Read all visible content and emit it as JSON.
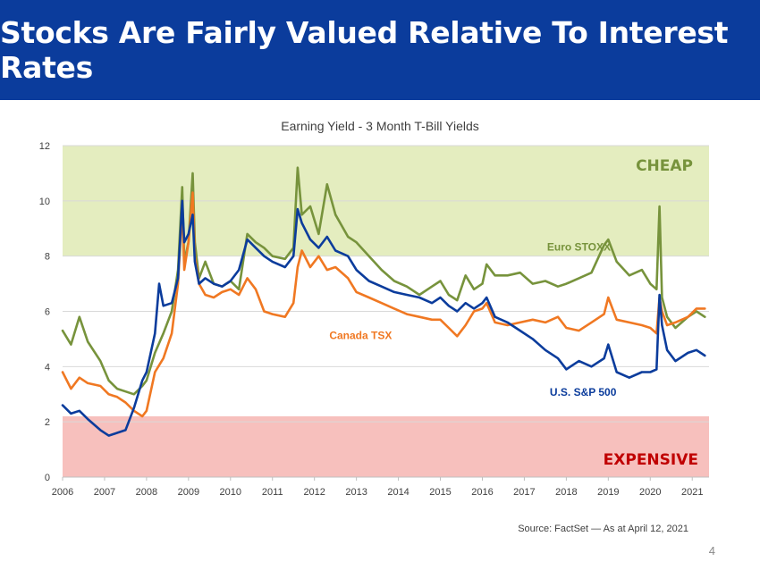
{
  "slide": {
    "title": "Stocks Are Fairly Valued Relative To Interest Rates",
    "source": "Source: FactSet — As at April 12, 2021",
    "page_number": "4"
  },
  "colors": {
    "banner": "#0b3c9c",
    "cheap_zone": "#e4edbf",
    "expensive_zone": "#f7c0bd",
    "euro": "#77933c",
    "canada": "#f07822",
    "us": "#0b3c9c"
  },
  "chart_data": {
    "type": "line",
    "title": "Earning Yield - 3 Month T-Bill Yields",
    "xlabel": "",
    "ylabel": "",
    "xlim": [
      2006,
      2021.4
    ],
    "ylim": [
      0,
      12
    ],
    "xticks": [
      "2006",
      "2007",
      "2008",
      "2009",
      "2010",
      "2011",
      "2012",
      "2013",
      "2014",
      "2015",
      "2016",
      "2017",
      "2018",
      "2019",
      "2020",
      "2021"
    ],
    "yticks": [
      "0",
      "2",
      "4",
      "6",
      "8",
      "10",
      "12"
    ],
    "grid": true,
    "zones": [
      {
        "label": "CHEAP",
        "from": 8,
        "to": 12
      },
      {
        "label": "EXPENSIVE",
        "from": 0,
        "to": 2.2
      }
    ],
    "series": [
      {
        "name": "Euro STOXX",
        "points": [
          [
            2006,
            5.3
          ],
          [
            2006.2,
            4.8
          ],
          [
            2006.4,
            5.8
          ],
          [
            2006.6,
            4.9
          ],
          [
            2006.9,
            4.2
          ],
          [
            2007.1,
            3.5
          ],
          [
            2007.3,
            3.2
          ],
          [
            2007.5,
            3.1
          ],
          [
            2007.7,
            3.0
          ],
          [
            2007.9,
            3.3
          ],
          [
            2008.0,
            3.5
          ],
          [
            2008.2,
            4.5
          ],
          [
            2008.4,
            5.2
          ],
          [
            2008.6,
            6.0
          ],
          [
            2008.75,
            7.5
          ],
          [
            2008.85,
            10.5
          ],
          [
            2008.9,
            7.8
          ],
          [
            2009.0,
            8.5
          ],
          [
            2009.1,
            11.0
          ],
          [
            2009.15,
            8.5
          ],
          [
            2009.25,
            7.2
          ],
          [
            2009.4,
            7.8
          ],
          [
            2009.6,
            7.0
          ],
          [
            2009.8,
            6.9
          ],
          [
            2010.0,
            7.1
          ],
          [
            2010.2,
            6.8
          ],
          [
            2010.4,
            8.8
          ],
          [
            2010.6,
            8.5
          ],
          [
            2010.8,
            8.3
          ],
          [
            2011.0,
            8.0
          ],
          [
            2011.3,
            7.9
          ],
          [
            2011.5,
            8.3
          ],
          [
            2011.6,
            11.2
          ],
          [
            2011.7,
            9.5
          ],
          [
            2011.9,
            9.8
          ],
          [
            2012.1,
            8.8
          ],
          [
            2012.3,
            10.6
          ],
          [
            2012.5,
            9.5
          ],
          [
            2012.8,
            8.7
          ],
          [
            2013.0,
            8.5
          ],
          [
            2013.3,
            8.0
          ],
          [
            2013.6,
            7.5
          ],
          [
            2013.9,
            7.1
          ],
          [
            2014.2,
            6.9
          ],
          [
            2014.5,
            6.6
          ],
          [
            2014.8,
            6.9
          ],
          [
            2015.0,
            7.1
          ],
          [
            2015.2,
            6.6
          ],
          [
            2015.4,
            6.4
          ],
          [
            2015.6,
            7.3
          ],
          [
            2015.8,
            6.8
          ],
          [
            2016.0,
            7.0
          ],
          [
            2016.1,
            7.7
          ],
          [
            2016.3,
            7.3
          ],
          [
            2016.6,
            7.3
          ],
          [
            2016.9,
            7.4
          ],
          [
            2017.2,
            7.0
          ],
          [
            2017.5,
            7.1
          ],
          [
            2017.8,
            6.9
          ],
          [
            2018.0,
            7.0
          ],
          [
            2018.3,
            7.2
          ],
          [
            2018.6,
            7.4
          ],
          [
            2018.9,
            8.4
          ],
          [
            2019.0,
            8.6
          ],
          [
            2019.2,
            7.8
          ],
          [
            2019.5,
            7.3
          ],
          [
            2019.8,
            7.5
          ],
          [
            2020.0,
            7.0
          ],
          [
            2020.15,
            6.8
          ],
          [
            2020.22,
            9.8
          ],
          [
            2020.28,
            6.5
          ],
          [
            2020.4,
            5.8
          ],
          [
            2020.6,
            5.4
          ],
          [
            2020.9,
            5.8
          ],
          [
            2021.1,
            6.0
          ],
          [
            2021.3,
            5.8
          ]
        ]
      },
      {
        "name": "Canada TSX",
        "points": [
          [
            2006,
            3.8
          ],
          [
            2006.2,
            3.2
          ],
          [
            2006.4,
            3.6
          ],
          [
            2006.6,
            3.4
          ],
          [
            2006.9,
            3.3
          ],
          [
            2007.1,
            3.0
          ],
          [
            2007.3,
            2.9
          ],
          [
            2007.5,
            2.7
          ],
          [
            2007.7,
            2.4
          ],
          [
            2007.9,
            2.2
          ],
          [
            2008.0,
            2.4
          ],
          [
            2008.2,
            3.8
          ],
          [
            2008.4,
            4.3
          ],
          [
            2008.6,
            5.2
          ],
          [
            2008.75,
            7.0
          ],
          [
            2008.85,
            9.8
          ],
          [
            2008.9,
            7.5
          ],
          [
            2009.0,
            8.5
          ],
          [
            2009.1,
            10.3
          ],
          [
            2009.15,
            8.0
          ],
          [
            2009.25,
            7.0
          ],
          [
            2009.4,
            6.6
          ],
          [
            2009.6,
            6.5
          ],
          [
            2009.8,
            6.7
          ],
          [
            2010.0,
            6.8
          ],
          [
            2010.2,
            6.6
          ],
          [
            2010.4,
            7.2
          ],
          [
            2010.6,
            6.8
          ],
          [
            2010.8,
            6.0
          ],
          [
            2011.0,
            5.9
          ],
          [
            2011.3,
            5.8
          ],
          [
            2011.5,
            6.3
          ],
          [
            2011.6,
            7.6
          ],
          [
            2011.7,
            8.2
          ],
          [
            2011.9,
            7.6
          ],
          [
            2012.1,
            8.0
          ],
          [
            2012.3,
            7.5
          ],
          [
            2012.5,
            7.6
          ],
          [
            2012.8,
            7.2
          ],
          [
            2013.0,
            6.7
          ],
          [
            2013.3,
            6.5
          ],
          [
            2013.6,
            6.3
          ],
          [
            2013.9,
            6.1
          ],
          [
            2014.2,
            5.9
          ],
          [
            2014.5,
            5.8
          ],
          [
            2014.8,
            5.7
          ],
          [
            2015.0,
            5.7
          ],
          [
            2015.2,
            5.4
          ],
          [
            2015.4,
            5.1
          ],
          [
            2015.6,
            5.5
          ],
          [
            2015.8,
            6.0
          ],
          [
            2016.0,
            6.1
          ],
          [
            2016.1,
            6.3
          ],
          [
            2016.3,
            5.6
          ],
          [
            2016.6,
            5.5
          ],
          [
            2016.9,
            5.6
          ],
          [
            2017.2,
            5.7
          ],
          [
            2017.5,
            5.6
          ],
          [
            2017.8,
            5.8
          ],
          [
            2018.0,
            5.4
          ],
          [
            2018.3,
            5.3
          ],
          [
            2018.6,
            5.6
          ],
          [
            2018.9,
            5.9
          ],
          [
            2019.0,
            6.5
          ],
          [
            2019.2,
            5.7
          ],
          [
            2019.5,
            5.6
          ],
          [
            2019.8,
            5.5
          ],
          [
            2020.0,
            5.4
          ],
          [
            2020.15,
            5.2
          ],
          [
            2020.22,
            6.5
          ],
          [
            2020.28,
            6.0
          ],
          [
            2020.4,
            5.5
          ],
          [
            2020.6,
            5.6
          ],
          [
            2020.9,
            5.8
          ],
          [
            2021.1,
            6.1
          ],
          [
            2021.3,
            6.1
          ]
        ]
      },
      {
        "name": "U.S. S&P 500",
        "points": [
          [
            2006,
            2.6
          ],
          [
            2006.2,
            2.3
          ],
          [
            2006.4,
            2.4
          ],
          [
            2006.6,
            2.1
          ],
          [
            2006.9,
            1.7
          ],
          [
            2007.1,
            1.5
          ],
          [
            2007.3,
            1.6
          ],
          [
            2007.5,
            1.7
          ],
          [
            2007.7,
            2.5
          ],
          [
            2007.9,
            3.5
          ],
          [
            2008.0,
            3.8
          ],
          [
            2008.2,
            5.2
          ],
          [
            2008.3,
            7.0
          ],
          [
            2008.4,
            6.2
          ],
          [
            2008.6,
            6.3
          ],
          [
            2008.75,
            7.2
          ],
          [
            2008.85,
            10.0
          ],
          [
            2008.9,
            8.5
          ],
          [
            2009.0,
            8.8
          ],
          [
            2009.1,
            9.5
          ],
          [
            2009.15,
            7.8
          ],
          [
            2009.25,
            7.0
          ],
          [
            2009.4,
            7.2
          ],
          [
            2009.6,
            7.0
          ],
          [
            2009.8,
            6.9
          ],
          [
            2010.0,
            7.1
          ],
          [
            2010.2,
            7.5
          ],
          [
            2010.4,
            8.6
          ],
          [
            2010.6,
            8.3
          ],
          [
            2010.8,
            8.0
          ],
          [
            2011.0,
            7.8
          ],
          [
            2011.3,
            7.6
          ],
          [
            2011.5,
            8.0
          ],
          [
            2011.6,
            9.7
          ],
          [
            2011.7,
            9.2
          ],
          [
            2011.9,
            8.6
          ],
          [
            2012.1,
            8.3
          ],
          [
            2012.3,
            8.7
          ],
          [
            2012.5,
            8.2
          ],
          [
            2012.8,
            8.0
          ],
          [
            2013.0,
            7.5
          ],
          [
            2013.3,
            7.1
          ],
          [
            2013.6,
            6.9
          ],
          [
            2013.9,
            6.7
          ],
          [
            2014.2,
            6.6
          ],
          [
            2014.5,
            6.5
          ],
          [
            2014.8,
            6.3
          ],
          [
            2015.0,
            6.5
          ],
          [
            2015.2,
            6.2
          ],
          [
            2015.4,
            6.0
          ],
          [
            2015.6,
            6.3
          ],
          [
            2015.8,
            6.1
          ],
          [
            2016.0,
            6.3
          ],
          [
            2016.1,
            6.5
          ],
          [
            2016.3,
            5.8
          ],
          [
            2016.6,
            5.6
          ],
          [
            2016.9,
            5.3
          ],
          [
            2017.2,
            5.0
          ],
          [
            2017.5,
            4.6
          ],
          [
            2017.8,
            4.3
          ],
          [
            2018.0,
            3.9
          ],
          [
            2018.3,
            4.2
          ],
          [
            2018.6,
            4.0
          ],
          [
            2018.9,
            4.3
          ],
          [
            2019.0,
            4.8
          ],
          [
            2019.2,
            3.8
          ],
          [
            2019.5,
            3.6
          ],
          [
            2019.8,
            3.8
          ],
          [
            2020.0,
            3.8
          ],
          [
            2020.15,
            3.9
          ],
          [
            2020.22,
            6.6
          ],
          [
            2020.28,
            5.5
          ],
          [
            2020.4,
            4.6
          ],
          [
            2020.6,
            4.2
          ],
          [
            2020.9,
            4.5
          ],
          [
            2021.1,
            4.6
          ],
          [
            2021.3,
            4.4
          ]
        ]
      }
    ],
    "annotations": [
      {
        "text": "Euro STOXX",
        "x": 2018.3,
        "y": 8.2,
        "series": "Euro STOXX"
      },
      {
        "text": "Canada TSX",
        "x": 2013.1,
        "y": 5.0,
        "series": "Canada TSX"
      },
      {
        "text": "U.S. S&P 500",
        "x": 2018.4,
        "y": 2.95,
        "series": "U.S. S&P 500"
      }
    ]
  }
}
